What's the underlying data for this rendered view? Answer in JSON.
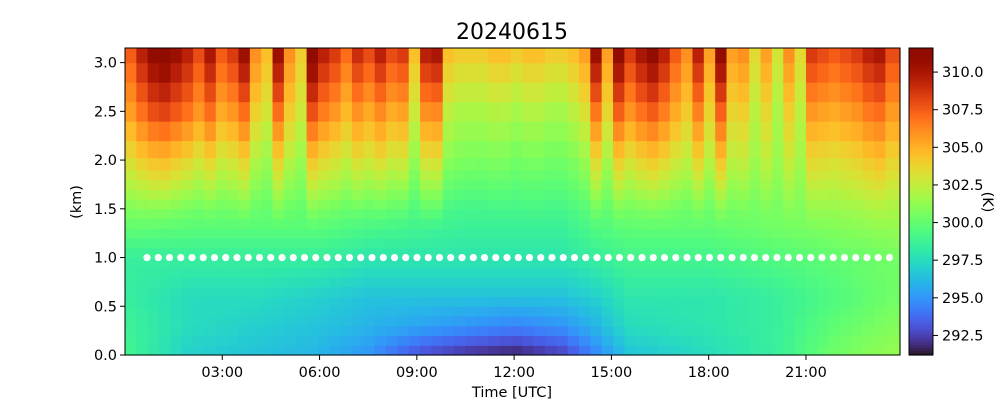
{
  "chart_data": {
    "type": "heatmap",
    "title": "20240615",
    "xlabel": "Time [UTC]",
    "ylabel": "(km)",
    "colorbar_label": "(K)",
    "colormap": "turbo",
    "x_range_hours": [
      0.0,
      23.9
    ],
    "x_ticks": [
      {
        "hour": 3,
        "label": "03:00"
      },
      {
        "hour": 6,
        "label": "06:00"
      },
      {
        "hour": 9,
        "label": "09:00"
      },
      {
        "hour": 12,
        "label": "12:00"
      },
      {
        "hour": 15,
        "label": "15:00"
      },
      {
        "hour": 18,
        "label": "18:00"
      },
      {
        "hour": 21,
        "label": "21:00"
      }
    ],
    "ylim": [
      0.0,
      3.15
    ],
    "y_ticks": [
      {
        "value": 0.0,
        "label": "0.0"
      },
      {
        "value": 0.5,
        "label": "0.5"
      },
      {
        "value": 1.0,
        "label": "1.0"
      },
      {
        "value": 1.5,
        "label": "1.5"
      },
      {
        "value": 2.0,
        "label": "2.0"
      },
      {
        "value": 2.5,
        "label": "2.5"
      },
      {
        "value": 3.0,
        "label": "3.0"
      }
    ],
    "color_range": [
      291.2,
      311.6
    ],
    "colorbar_ticks": [
      {
        "value": 292.5,
        "label": "292.5"
      },
      {
        "value": 295.0,
        "label": "295.0"
      },
      {
        "value": 297.5,
        "label": "297.5"
      },
      {
        "value": 300.0,
        "label": "300.0"
      },
      {
        "value": 302.5,
        "label": "302.5"
      },
      {
        "value": 305.0,
        "label": "305.0"
      },
      {
        "value": 307.5,
        "label": "307.5"
      },
      {
        "value": 310.0,
        "label": "310.0"
      }
    ],
    "reference_line": {
      "y": 1.0,
      "color": "#ffffff",
      "style": "dotted"
    },
    "heights_km": [
      0.05,
      0.15,
      0.25,
      0.35,
      0.45,
      0.55,
      0.65,
      0.75,
      0.85,
      0.95,
      1.05,
      1.15,
      1.25,
      1.35,
      1.45,
      1.55,
      1.65,
      1.75,
      1.85,
      1.95,
      2.1,
      2.3,
      2.5,
      2.7,
      2.9,
      3.1
    ],
    "profile_hours": [
      0.0,
      0.35,
      0.7,
      1.05,
      1.4,
      1.75,
      2.1,
      2.45,
      2.8,
      3.15,
      3.5,
      3.85,
      4.2,
      4.55,
      4.9,
      5.25,
      5.6,
      5.95,
      6.3,
      6.65,
      7.0,
      7.35,
      7.7,
      8.05,
      8.4,
      8.75,
      9.1,
      9.45,
      9.8,
      10.15,
      10.5,
      10.85,
      11.2,
      11.55,
      11.9,
      12.25,
      12.6,
      12.95,
      13.3,
      13.65,
      14.0,
      14.35,
      14.7,
      15.05,
      15.4,
      15.75,
      16.1,
      16.45,
      16.8,
      17.15,
      17.5,
      17.85,
      18.2,
      18.55,
      18.9,
      19.25,
      19.6,
      19.95,
      20.3,
      20.65,
      21.0,
      21.35,
      21.7,
      22.05,
      22.4,
      22.75,
      23.1,
      23.45
    ],
    "top_temperature_K": [
      307.5,
      309.5,
      311.0,
      311.5,
      310.5,
      309.5,
      308.0,
      310.0,
      307.5,
      308.5,
      310.5,
      306.0,
      304.5,
      310.5,
      306.0,
      304.0,
      311.5,
      309.5,
      308.5,
      307.0,
      309.0,
      308.0,
      309.5,
      308.0,
      308.5,
      304.5,
      309.5,
      310.0,
      304.5,
      304.0,
      304.0,
      304.0,
      304.5,
      304.5,
      304.0,
      304.5,
      304.5,
      304.0,
      304.0,
      304.5,
      305.5,
      310.5,
      305.5,
      311.0,
      308.5,
      310.0,
      311.0,
      309.5,
      307.5,
      306.0,
      309.5,
      305.5,
      311.0,
      305.5,
      306.0,
      303.5,
      305.5,
      303.0,
      306.0,
      303.5,
      308.5,
      308.0,
      307.5,
      308.0,
      308.5,
      309.5,
      310.0,
      308.0
    ],
    "profile_anchors": {
      "height_km": [
        0.0,
        0.3,
        0.6,
        1.0,
        1.5,
        2.0,
        2.5,
        3.0,
        3.15
      ],
      "rows": [
        {
          "hour": 0.0,
          "K": [
            299.0,
            298.8,
            298.5,
            298.5,
            301.0,
            304.0,
            306.5,
            308.5,
            309.0
          ]
        },
        {
          "hour": 2.0,
          "K": [
            297.0,
            297.5,
            297.5,
            298.5,
            300.5,
            303.5,
            306.5,
            308.5,
            309.0
          ]
        },
        {
          "hour": 4.0,
          "K": [
            296.5,
            297.0,
            297.5,
            298.5,
            300.5,
            303.0,
            305.5,
            308.0,
            308.5
          ]
        },
        {
          "hour": 6.0,
          "K": [
            296.0,
            296.5,
            297.0,
            298.5,
            300.5,
            303.0,
            305.5,
            307.5,
            308.0
          ]
        },
        {
          "hour": 7.5,
          "K": [
            295.0,
            296.0,
            296.5,
            298.0,
            300.0,
            302.5,
            304.5,
            306.5,
            307.0
          ]
        },
        {
          "hour": 9.0,
          "K": [
            293.0,
            295.5,
            296.5,
            298.0,
            299.5,
            301.5,
            303.0,
            304.5,
            305.0
          ]
        },
        {
          "hour": 10.5,
          "K": [
            292.0,
            295.0,
            296.5,
            298.0,
            299.0,
            300.5,
            301.5,
            303.0,
            303.5
          ]
        },
        {
          "hour": 12.0,
          "K": [
            291.5,
            294.5,
            296.5,
            298.0,
            299.0,
            300.0,
            301.0,
            302.5,
            303.0
          ]
        },
        {
          "hour": 13.5,
          "K": [
            292.5,
            295.0,
            296.5,
            298.0,
            299.0,
            300.0,
            301.0,
            302.5,
            303.0
          ]
        },
        {
          "hour": 14.5,
          "K": [
            294.5,
            296.0,
            297.0,
            298.5,
            300.0,
            302.0,
            304.0,
            306.0,
            306.5
          ]
        },
        {
          "hour": 15.5,
          "K": [
            296.5,
            297.5,
            298.0,
            299.0,
            300.5,
            303.0,
            305.5,
            307.5,
            308.0
          ]
        },
        {
          "hour": 18.0,
          "K": [
            297.5,
            298.0,
            298.0,
            299.0,
            300.5,
            303.0,
            305.0,
            307.0,
            307.5
          ]
        },
        {
          "hour": 20.0,
          "K": [
            298.5,
            298.5,
            298.5,
            299.5,
            301.0,
            303.0,
            304.5,
            306.5,
            307.0
          ]
        },
        {
          "hour": 22.0,
          "K": [
            300.5,
            300.0,
            299.5,
            300.0,
            301.5,
            303.5,
            305.5,
            307.5,
            308.0
          ]
        },
        {
          "hour": 23.9,
          "K": [
            301.5,
            301.0,
            300.5,
            300.5,
            302.0,
            304.0,
            306.0,
            308.0,
            308.5
          ]
        }
      ]
    }
  }
}
